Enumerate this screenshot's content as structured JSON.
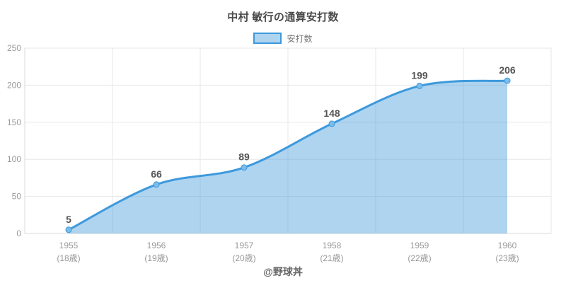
{
  "title": "中村 敏行の通算安打数",
  "legend": {
    "items": [
      {
        "label": "安打数"
      }
    ]
  },
  "footer": {
    "credit": "@野球丼"
  },
  "colors": {
    "line": "#3d99dc",
    "area_fill": "rgba(61,153,220,0.42)",
    "point_fill": "#7cbcea",
    "grid": "#e7e7e7",
    "axis": "#d8d8d8",
    "tick_label": "#999999",
    "value_label": "#555555",
    "title_text": "#4a4a4a"
  },
  "chart_data": {
    "type": "area",
    "title": "中村 敏行の通算安打数",
    "categories": [
      "1955",
      "1956",
      "1957",
      "1958",
      "1959",
      "1960"
    ],
    "category_sublabels": [
      "(18歳)",
      "(19歳)",
      "(20歳)",
      "(21歳)",
      "(22歳)",
      "(23歳)"
    ],
    "series": [
      {
        "name": "安打数",
        "values": [
          5,
          66,
          89,
          148,
          199,
          206
        ]
      }
    ],
    "data_labels": [
      5,
      66,
      89,
      148,
      199,
      206
    ],
    "xlabel": "",
    "ylabel": "",
    "ylim": [
      0,
      250
    ],
    "yticks": [
      0,
      50,
      100,
      150,
      200,
      250
    ],
    "grid": true,
    "smooth": true,
    "legend_position": "top",
    "credit": "@野球丼"
  }
}
